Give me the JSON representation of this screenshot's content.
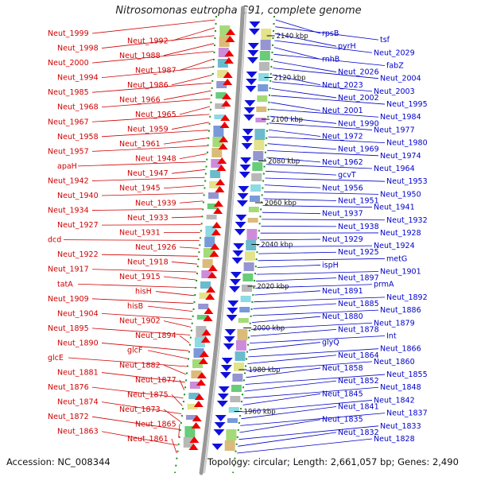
{
  "title": "Nitrosomonas eutropha C91, complete genome",
  "footer": {
    "accession": "Accession: NC_008344",
    "stats": "Topology: circular; Length: 2,661,057 bp; Genes: 2,490"
  },
  "colors": {
    "left_labels": "#d00000",
    "right_labels": "#0000c8",
    "ring": "#999999",
    "track_dots": "#1f8f1f"
  },
  "ticks": [
    "2140 kbp",
    "2120 kbp",
    "2100 kbp",
    "2080 kbp",
    "2060 kbp",
    "2040 kbp",
    "2020 kbp",
    "2000 kbp",
    "1980 kbp",
    "1960 kbp"
  ],
  "left_labels": [
    "Neut_1999",
    "Neut_1992",
    "Neut_1998",
    "Neut_1988",
    "Neut_2000",
    "Neut_1987",
    "Neut_1994",
    "Neut_1986",
    "Neut_1985",
    "Neut_1966",
    "Neut_1968",
    "Neut_1965",
    "Neut_1967",
    "Neut_1959",
    "Neut_1958",
    "Neut_1961",
    "Neut_1957",
    "Neut_1948",
    "apaH",
    "Neut_1947",
    "Neut_1942",
    "Neut_1945",
    "Neut_1940",
    "Neut_1939",
    "Neut_1934",
    "Neut_1933",
    "Neut_1927",
    "Neut_1931",
    "dcd",
    "Neut_1926",
    "Neut_1922",
    "Neut_1918",
    "Neut_1917",
    "Neut_1915",
    "tatA",
    "hisH",
    "Neut_1909",
    "hisB",
    "Neut_1904",
    "Neut_1902",
    "Neut_1895",
    "Neut_1894",
    "Neut_1890",
    "glcF",
    "glcE",
    "Neut_1882",
    "Neut_1881",
    "Neut_1877",
    "Neut_1876",
    "Neut_1875",
    "Neut_1874",
    "Neut_1873",
    "Neut_1872",
    "Neut_1865",
    "Neut_1863",
    "Neut_1861"
  ],
  "right_labels": [
    "rpsB",
    "tsf",
    "pyrH",
    "Neut_2029",
    "rnhB",
    "fabZ",
    "Neut_2026",
    "Neut_2004",
    "Neut_2023",
    "Neut_2003",
    "Neut_2002",
    "Neut_1995",
    "Neut_2001",
    "Neut_1984",
    "Neut_1990",
    "Neut_1977",
    "Neut_1972",
    "Neut_1980",
    "Neut_1969",
    "Neut_1974",
    "Neut_1962",
    "Neut_1964",
    "gcvT",
    "Neut_1953",
    "Neut_1956",
    "Neut_1950",
    "Neut_1951",
    "Neut_1941",
    "Neut_1937",
    "Neut_1932",
    "Neut_1938",
    "Neut_1928",
    "Neut_1929",
    "Neut_1924",
    "Neut_1925",
    "metG",
    "ispH",
    "Neut_1901",
    "Neut_1897",
    "prmA",
    "Neut_1891",
    "Neut_1892",
    "Neut_1885",
    "Neut_1886",
    "Neut_1880",
    "Neut_1879",
    "Neut_1878",
    "Int",
    "glyQ",
    "Neut_1866",
    "Neut_1864",
    "Neut_1860",
    "Neut_1858",
    "Neut_1855",
    "Neut_1852",
    "Neut_1848",
    "Neut_1845",
    "Neut_1842",
    "Neut_1841",
    "Neut_1837",
    "Neut_1835",
    "Neut_1833",
    "Neut_1832",
    "Neut_1828"
  ]
}
